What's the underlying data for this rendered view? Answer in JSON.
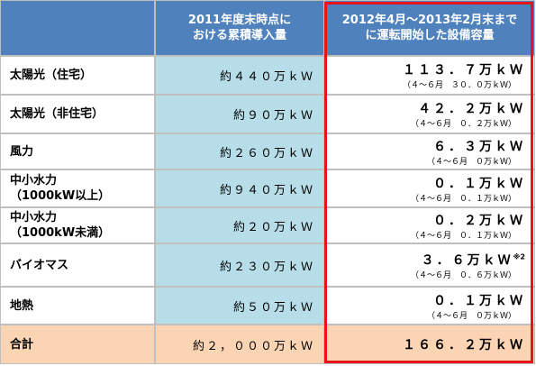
{
  "table": {
    "header": [
      "2011年度末時点に\nおける累積導入量",
      "2012年4月～2013年2月末まで\nに運転開始した設備容量"
    ],
    "rows": [
      {
        "name": [
          "太陽光（住宅）"
        ],
        "cumulative": "約４４０万ｋＷ",
        "capacity": "１１３．７万ｋＷ",
        "detail": "（４～６月　３０．０万ｋＷ）"
      },
      {
        "name": [
          "太陽光（非住宅）"
        ],
        "cumulative": "約９０万ｋＷ",
        "capacity": "４２．２万ｋＷ",
        "detail": "（４～６月　０．２万ｋＷ）"
      },
      {
        "name": [
          "風力"
        ],
        "cumulative": "約２６０万ｋＷ",
        "capacity": "６．３万ｋＷ",
        "detail": "（４～６月　０万ｋＷ）"
      },
      {
        "name": [
          "中小水力",
          "（1000kW以上）"
        ],
        "cumulative": "約９４０万ｋＷ",
        "capacity": "０．１万ｋＷ",
        "detail": "（４～６月　０．１万ｋＷ）"
      },
      {
        "name": [
          "中小水力",
          "（1000kW未満）"
        ],
        "cumulative": "約２０万ｋＷ",
        "capacity": "０．２万ｋＷ",
        "detail": "（４～６月　０．１万ｋＷ）"
      },
      {
        "name": [
          "バイオマス"
        ],
        "cumulative": "約２３０万ｋＷ",
        "capacity": "３．６万ｋＷ",
        "note": "※2",
        "detail": "（４～６月　０．６万ｋＷ）"
      },
      {
        "name": [
          "地熱"
        ],
        "cumulative": "約５０万ｋＷ",
        "capacity": "０．１万ｋＷ",
        "detail": "（４～６月　０万ｋＷ）"
      }
    ],
    "total": {
      "name": "合計",
      "cumulative": "約２，０００万ｋＷ",
      "capacity": "１６６．２万ｋＷ"
    }
  }
}
